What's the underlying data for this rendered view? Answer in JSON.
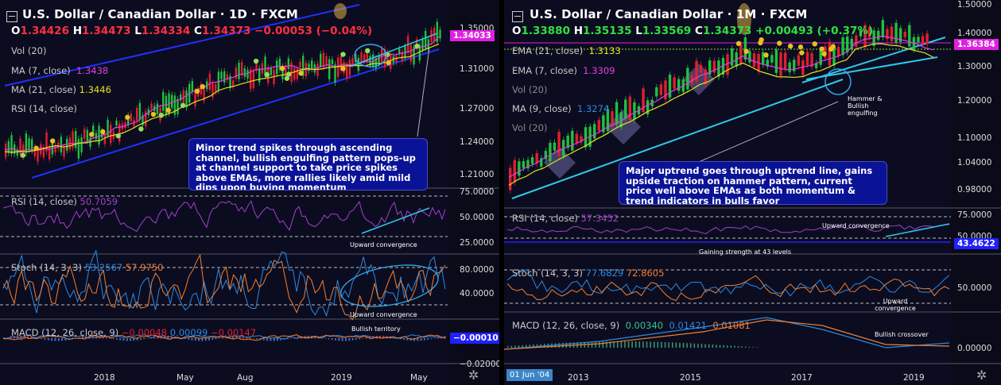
{
  "left": {
    "title": "U.S. Dollar / Canadian Dollar · 1D · FXCM",
    "ohlc": {
      "o_label": "O",
      "o": "1.34426",
      "h_label": "H",
      "h": "1.34473",
      "l_label": "L",
      "l": "1.34334",
      "c_label": "C",
      "c": "1.34373",
      "change": "−0.00053 (−0.04%)"
    },
    "indicators": {
      "vol": "Vol (20)",
      "ma7_label": "MA (7, close)",
      "ma7_value": "1.3438",
      "ma21_label": "MA (21, close)",
      "ma21_value": "1.3446",
      "rsi_small": "RSI (14, close)"
    },
    "price_axis": [
      "1.35000",
      "1.31000",
      "1.27000",
      "1.24000",
      "1.21000"
    ],
    "price_tag": "1.34033",
    "annotation": "Minor trend spikes through ascending channel, bullish engulfing pattern pops-up at channel support to take price spikes above EMAs, more rallies likely amid mild dips upon buying momentum",
    "rsi": {
      "label": "RSI (14, close)",
      "value": "50.7059",
      "axis": [
        "75.0000",
        "50.0000",
        "25.0000"
      ],
      "note": "Upward convergence"
    },
    "stoch": {
      "label": "Stoch (14, 3, 3)",
      "k": "53.2567",
      "d": "57.9750",
      "axis": [
        "80.0000",
        "40.0000"
      ],
      "note": "Upward convergence"
    },
    "macd": {
      "label": "MACD (12, 26, close, 9)",
      "v1": "−0.00048",
      "v2": "0.00099",
      "v3": "−0.00147",
      "axis": [
        "−0.00010",
        "−0.02000"
      ],
      "note": "Bullish territory",
      "tag": "−0.00010"
    },
    "time_axis": [
      "2018",
      "May",
      "Aug",
      "2019",
      "May"
    ]
  },
  "right": {
    "title": "U.S. Dollar / Canadian Dollar · 1M · FXCM",
    "ohlc": {
      "o_label": "O",
      "o": "1.33880",
      "h_label": "H",
      "h": "1.35135",
      "l_label": "L",
      "l": "1.33569",
      "c_label": "C",
      "c": "1.34373",
      "change": "+0.00493 (+0.37%)"
    },
    "indicators": {
      "ema21_label": "EMA (21, close)",
      "ema21_value": "1.3133",
      "ema7_label": "EMA (7, close)",
      "ema7_value": "1.3309",
      "vol1": "Vol (20)",
      "ma9_label": "MA (9, close)",
      "ma9_value": "1.3274",
      "vol2": "Vol (20)"
    },
    "price_axis": [
      "1.50000",
      "1.40000",
      "1.30000",
      "1.20000",
      "1.10000",
      "1.04000",
      "0.98000"
    ],
    "price_tag": "1.36384",
    "pattern_note": "Hammer & Bullish engulfing",
    "annotation": "Major uptrend goes through uptrend line, gains upside traction on  hammer pattern, current price well above EMAs as both momentum & trend indicators in bulls favor",
    "rsi": {
      "label": "RSI (14, close)",
      "value": "57.3452",
      "axis": [
        "75.0000",
        "50.0000"
      ],
      "note1": "Upward convergence",
      "note2": "Gaining strength at 43 levels",
      "tag": "43.4622"
    },
    "stoch": {
      "label": "Stoch (14, 3, 3)",
      "k": "77.6829",
      "d": "72.8605",
      "axis": [
        "50.0000"
      ],
      "note": "Upward convergence"
    },
    "macd": {
      "label": "MACD (12, 26, close, 9)",
      "v1": "0.00340",
      "v2": "0.01421",
      "v3": "0.01081",
      "axis": [
        "0.00000"
      ],
      "note": "Bullish crossover"
    },
    "time_axis": [
      "2013",
      "2015",
      "2017",
      "2019"
    ],
    "date_tag": "01 Jun '04"
  },
  "colors": {
    "up": "#20c040",
    "down": "#e02030",
    "ma7": "#e040e0",
    "ma21": "#e8e020",
    "channel": "#2030ff",
    "trend": "#30c8e8",
    "rsi": "#a040c8",
    "stoch_k": "#2a8ae0",
    "stoch_d": "#f08030",
    "macd_tag": "#2020ff",
    "price_tag": "#e020e0"
  }
}
